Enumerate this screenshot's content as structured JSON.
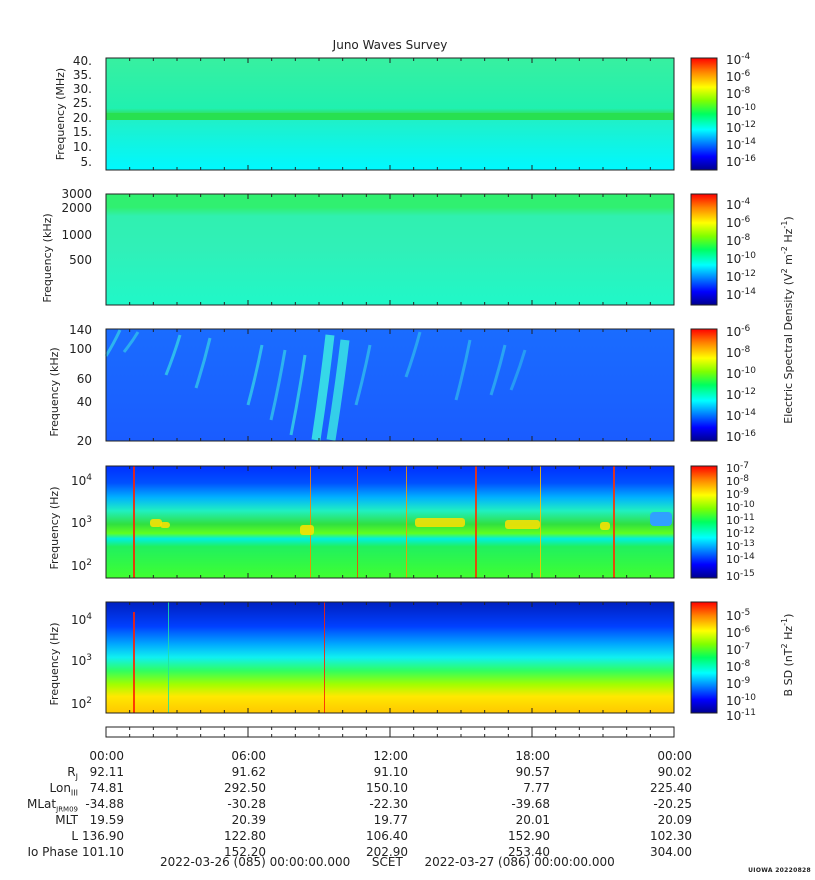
{
  "title": "Juno Waves Survey",
  "stamp": "UIOWA 20220828",
  "colors": {
    "jet": [
      "#00008f",
      "#0000ff",
      "#0040ff",
      "#0080ff",
      "#00c0ff",
      "#00ffff",
      "#40ffc0",
      "#00ff60",
      "#20e000",
      "#80ff00",
      "#c0ff00",
      "#ffff00",
      "#ffc000",
      "#ff8000",
      "#ff4000",
      "#ff0000",
      "#c00000"
    ]
  },
  "chart_data": {
    "type": "heatmap",
    "title": "Juno Waves Survey",
    "x_ticks": [
      "00:00",
      "06:00",
      "12:00",
      "18:00",
      "00:00"
    ],
    "panels": [
      {
        "ylabel": "Frequency (MHz)",
        "yticks": [
          "40.",
          "35.",
          "30.",
          "25.",
          "20.",
          "15.",
          "10.",
          "5."
        ],
        "colorbar": {
          "ticks": [
            {
              "base": "10",
              "exp": "-4"
            },
            {
              "base": "10",
              "exp": "-6"
            },
            {
              "base": "10",
              "exp": "-8"
            },
            {
              "base": "10",
              "exp": "-10"
            },
            {
              "base": "10",
              "exp": "-12"
            },
            {
              "base": "10",
              "exp": "-14"
            },
            {
              "base": "10",
              "exp": "-16"
            }
          ]
        }
      },
      {
        "ylabel": "Frequency (kHz)",
        "yticks": [
          "3000",
          "2000",
          "1000",
          "500"
        ],
        "colorbar": {
          "ticks": [
            {
              "base": "10",
              "exp": "-4"
            },
            {
              "base": "10",
              "exp": "-6"
            },
            {
              "base": "10",
              "exp": "-8"
            },
            {
              "base": "10",
              "exp": "-10"
            },
            {
              "base": "10",
              "exp": "-12"
            },
            {
              "base": "10",
              "exp": "-14"
            }
          ]
        }
      },
      {
        "ylabel": "Frequency (kHz)",
        "yticks": [
          "140",
          "100",
          "60",
          "40",
          "20"
        ],
        "colorbar": {
          "ticks": [
            {
              "base": "10",
              "exp": "-6"
            },
            {
              "base": "10",
              "exp": "-8"
            },
            {
              "base": "10",
              "exp": "-10"
            },
            {
              "base": "10",
              "exp": "-12"
            },
            {
              "base": "10",
              "exp": "-14"
            },
            {
              "base": "10",
              "exp": "-16"
            }
          ]
        }
      },
      {
        "ylabel": "Frequency (Hz)",
        "yticks": [
          {
            "base": "10",
            "exp": "4"
          },
          {
            "base": "10",
            "exp": "3"
          },
          {
            "base": "10",
            "exp": "2"
          }
        ],
        "colorbar": {
          "ticks": [
            {
              "base": "10",
              "exp": "-7"
            },
            {
              "base": "10",
              "exp": "-8"
            },
            {
              "base": "10",
              "exp": "-9"
            },
            {
              "base": "10",
              "exp": "-10"
            },
            {
              "base": "10",
              "exp": "-11"
            },
            {
              "base": "10",
              "exp": "-12"
            },
            {
              "base": "10",
              "exp": "-13"
            },
            {
              "base": "10",
              "exp": "-14"
            },
            {
              "base": "10",
              "exp": "-15"
            }
          ]
        }
      },
      {
        "ylabel": "Frequency (Hz)",
        "yticks": [
          {
            "base": "10",
            "exp": "4"
          },
          {
            "base": "10",
            "exp": "3"
          },
          {
            "base": "10",
            "exp": "2"
          }
        ],
        "colorbar": {
          "ticks": [
            {
              "base": "10",
              "exp": "-5"
            },
            {
              "base": "10",
              "exp": "-6"
            },
            {
              "base": "10",
              "exp": "-7"
            },
            {
              "base": "10",
              "exp": "-8"
            },
            {
              "base": "10",
              "exp": "-9"
            },
            {
              "base": "10",
              "exp": "-10"
            },
            {
              "base": "10",
              "exp": "-11"
            }
          ]
        }
      }
    ],
    "colorbar_labels": [
      {
        "text": "Electric Spectral Density (V",
        "sup1": "2",
        "mid": " m",
        "sup2": "-2",
        "mid2": " Hz",
        "sup3": "-1",
        "end": ")"
      },
      {
        "text": "B SD (nT",
        "sup1": "2",
        "mid": " Hz",
        "sup2": "-1",
        "end": ")"
      }
    ]
  },
  "ephemeris": {
    "labels": [
      "R",
      "Lon",
      "MLat",
      "MLT",
      "L",
      "Io Phase"
    ],
    "label_subs": [
      "J",
      "III",
      "JRM09",
      "",
      "",
      ""
    ],
    "columns": [
      [
        "92.11",
        "74.81",
        "-34.88",
        "19.59",
        "136.90",
        "101.10"
      ],
      [
        "91.62",
        "292.50",
        "-30.28",
        "20.39",
        "122.80",
        "152.20"
      ],
      [
        "91.10",
        "150.10",
        "-22.30",
        "19.77",
        "106.40",
        "202.90"
      ],
      [
        "90.57",
        "7.77",
        "-39.68",
        "20.01",
        "152.90",
        "253.40"
      ],
      [
        "90.02",
        "225.40",
        "-20.25",
        "20.09",
        "102.30",
        "304.00"
      ]
    ]
  },
  "footer": {
    "start": "2022-03-26 (085) 00:00:00.000",
    "mid": "SCET",
    "end": "2022-03-27 (086) 00:00:00.000"
  }
}
